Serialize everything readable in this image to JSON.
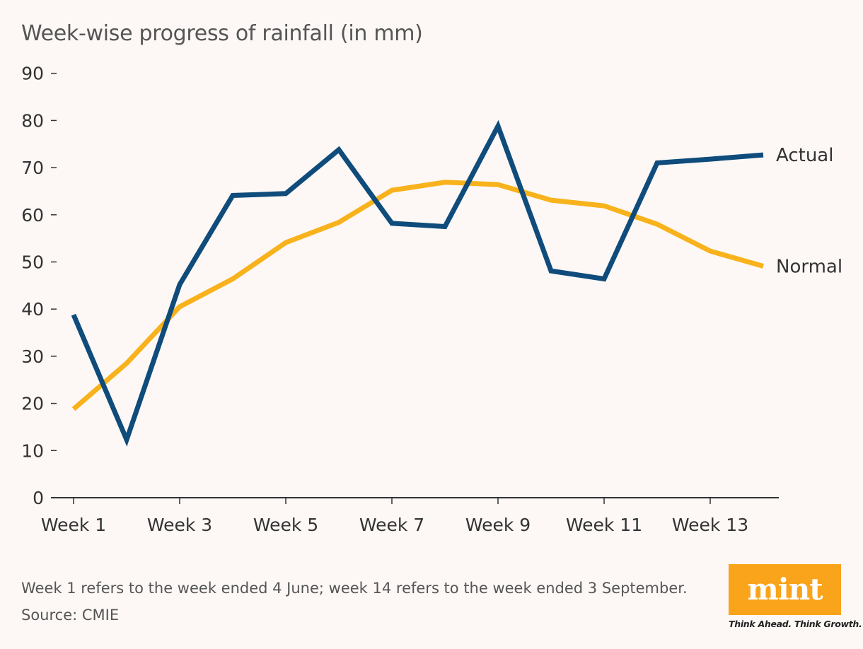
{
  "title": "Week-wise progress of rainfall (in mm)",
  "chart_data": {
    "type": "line",
    "title": "Week-wise progress of rainfall (in mm)",
    "x": [
      1,
      2,
      3,
      4,
      5,
      6,
      7,
      8,
      9,
      10,
      11,
      12,
      13,
      14
    ],
    "x_tick_labels": [
      {
        "week": 1,
        "label": "Week 1"
      },
      {
        "week": 3,
        "label": "Week 3"
      },
      {
        "week": 5,
        "label": "Week 5"
      },
      {
        "week": 7,
        "label": "Week 7"
      },
      {
        "week": 9,
        "label": "Week 9"
      },
      {
        "week": 11,
        "label": "Week 11"
      },
      {
        "week": 13,
        "label": "Week 13"
      }
    ],
    "y_ticks": [
      0,
      10,
      20,
      30,
      40,
      50,
      60,
      70,
      80,
      90
    ],
    "ylim": [
      0,
      90
    ],
    "xlabel": "",
    "ylabel": "",
    "grid": false,
    "series": [
      {
        "name": "Actual",
        "color": "#0f4c7b",
        "values": [
          38.8,
          12.3,
          45.2,
          64.1,
          64.5,
          73.8,
          58.2,
          57.5,
          78.8,
          48.1,
          46.4,
          71.0,
          71.8,
          72.7
        ]
      },
      {
        "name": "Normal",
        "color": "#f8b21c",
        "values": [
          18.8,
          28.5,
          40.5,
          46.4,
          54.1,
          58.4,
          65.2,
          66.9,
          66.4,
          63.1,
          61.9,
          58.0,
          52.3,
          49.1
        ]
      }
    ]
  },
  "footnote": "Week 1 refers to the week ended 4 June; week 14 refers to the week ended 3 September.",
  "source": "Source: CMIE",
  "logo": {
    "text": "mint",
    "tagline": "Think Ahead. Think Growth.",
    "color": "#f9a41a"
  }
}
